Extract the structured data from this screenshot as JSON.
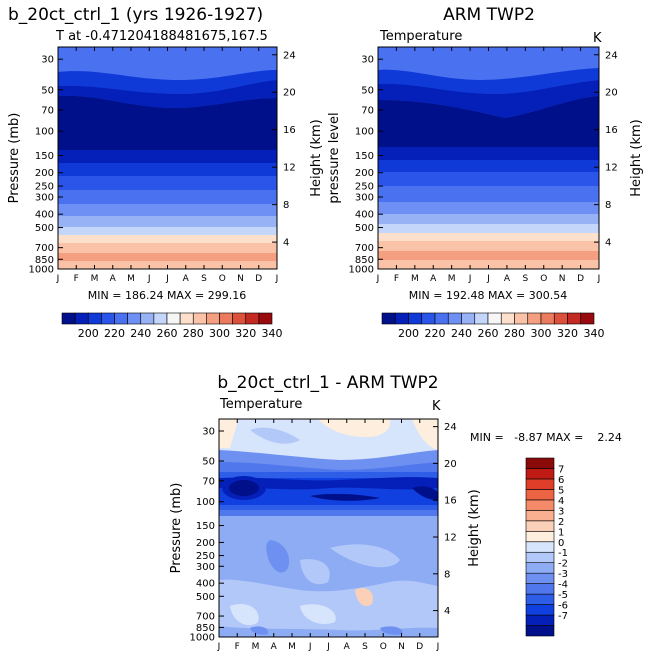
{
  "chart_data": [
    {
      "type": "heatmap",
      "title": "b_20ct_ctrl_1 (yrs 1926-1927)",
      "subtitle": "T at -0.471204188481675,167.5",
      "ylabel": "Pressure (mb)",
      "ylabel_right": "Height (km)",
      "x_ticks": [
        "J",
        "F",
        "M",
        "A",
        "M",
        "J",
        "J",
        "A",
        "S",
        "O",
        "N",
        "D",
        "J"
      ],
      "y_ticks": [
        30,
        50,
        70,
        100,
        150,
        200,
        250,
        300,
        400,
        500,
        700,
        850,
        1000
      ],
      "y_right_ticks": [
        24,
        20,
        16,
        12,
        8,
        4
      ],
      "stats": "MIN = 186.24 MAX = 299.16",
      "colorbar": {
        "labels": [
          200,
          220,
          240,
          260,
          280,
          300,
          320,
          340
        ]
      }
    },
    {
      "type": "heatmap",
      "title": "ARM TWP2",
      "field_label": "Temperature",
      "unit_label": "K",
      "ylabel": "pressure level",
      "ylabel_right": "Height (km)",
      "x_ticks": [
        "J",
        "F",
        "M",
        "A",
        "M",
        "J",
        "J",
        "A",
        "S",
        "O",
        "N",
        "D",
        "J"
      ],
      "y_ticks": [
        30,
        50,
        70,
        100,
        150,
        200,
        250,
        300,
        400,
        500,
        700,
        850,
        1000
      ],
      "y_right_ticks": [
        24,
        20,
        16,
        12,
        8,
        4
      ],
      "stats": "MIN = 192.48 MAX = 300.54",
      "colorbar": {
        "labels": [
          200,
          220,
          240,
          260,
          280,
          300,
          320,
          340
        ]
      }
    },
    {
      "type": "heatmap",
      "title": "b_20ct_ctrl_1 - ARM TWP2",
      "field_label": "Temperature",
      "unit_label": "K",
      "ylabel": "Pressure (mb)",
      "ylabel_right": "Height (km)",
      "x_ticks": [
        "J",
        "F",
        "M",
        "A",
        "M",
        "J",
        "J",
        "A",
        "S",
        "O",
        "N",
        "D",
        "J"
      ],
      "y_ticks": [
        30,
        50,
        70,
        100,
        150,
        200,
        250,
        300,
        400,
        500,
        700,
        850,
        1000
      ],
      "y_right_ticks": [
        24,
        20,
        16,
        12,
        8,
        4
      ],
      "stats": "MIN =   -8.87 MAX =    2.24",
      "colorbar": {
        "labels": [
          7,
          6,
          5,
          4,
          3,
          2,
          1,
          0,
          -1,
          -2,
          -3,
          -4,
          -5,
          -6,
          -7
        ]
      }
    }
  ],
  "colors": {
    "temp_scale": [
      "#000f8a",
      "#0520b8",
      "#0f3ad8",
      "#2a55e8",
      "#4a72f0",
      "#6e90f4",
      "#98b2f6",
      "#c4d6fa",
      "#f6f6f6",
      "#fde0cc",
      "#fac3a8",
      "#f4a080",
      "#ec7a5c",
      "#dc503c",
      "#c22a22",
      "#980a0e"
    ],
    "diff_scale": [
      "#000f8a",
      "#0520b8",
      "#1040e0",
      "#2e5ee8",
      "#5078ec",
      "#6e90f0",
      "#8eacf4",
      "#b2c8f8",
      "#d6e4fc",
      "#fdeedd",
      "#fbd0b8",
      "#f8b090",
      "#f48a68",
      "#ec6444",
      "#e03e28",
      "#c01a14",
      "#8a0a0a"
    ]
  }
}
